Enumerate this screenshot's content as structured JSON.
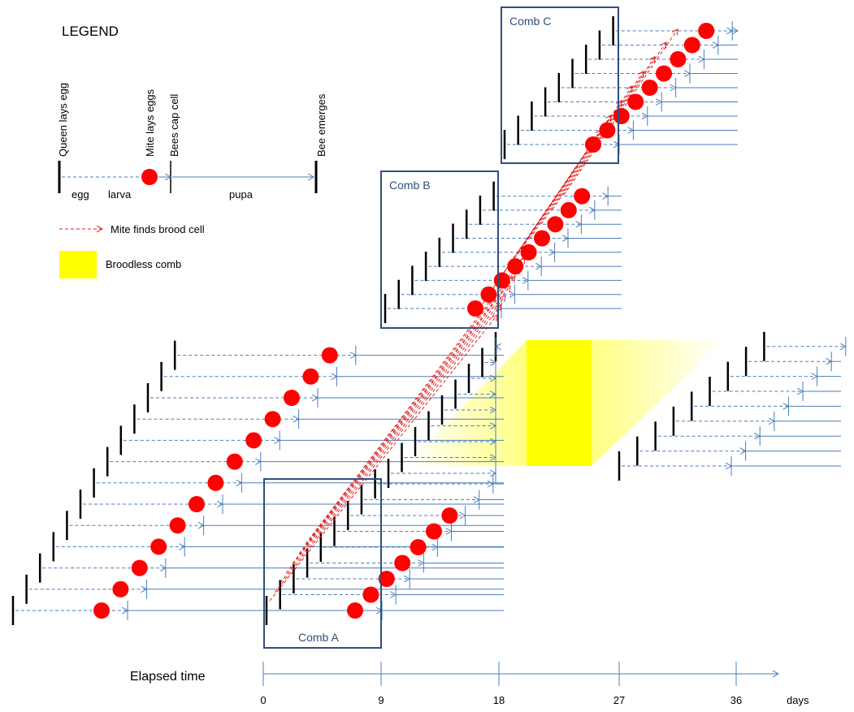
{
  "legend": {
    "title": "LEGEND",
    "queen_lays_egg": "Queen lays egg",
    "mite_lays_eggs": "Mite lays eggs",
    "bees_cap_cell": "Bees cap cell",
    "bee_emerges": "Bee emerges",
    "egg": "egg",
    "larva": "larva",
    "pupa": "pupa",
    "mite_finds_cell": "Mite finds brood cell",
    "broodless_comb": "Broodless comb"
  },
  "combs": {
    "a": "Comb A",
    "b": "Comb B",
    "c": "Comb C"
  },
  "axis": {
    "label": "Elapsed time",
    "unit": "days",
    "ticks": [
      "0",
      "9",
      "18",
      "27",
      "36"
    ]
  },
  "colors": {
    "tick": "#000000",
    "line": "#4a7ebb",
    "mite": "#ff0000",
    "mite_path": "#e02020",
    "broodless": "#ffff00",
    "broodless_fade": "#ffffb0",
    "box": "#2f4f7f"
  }
}
